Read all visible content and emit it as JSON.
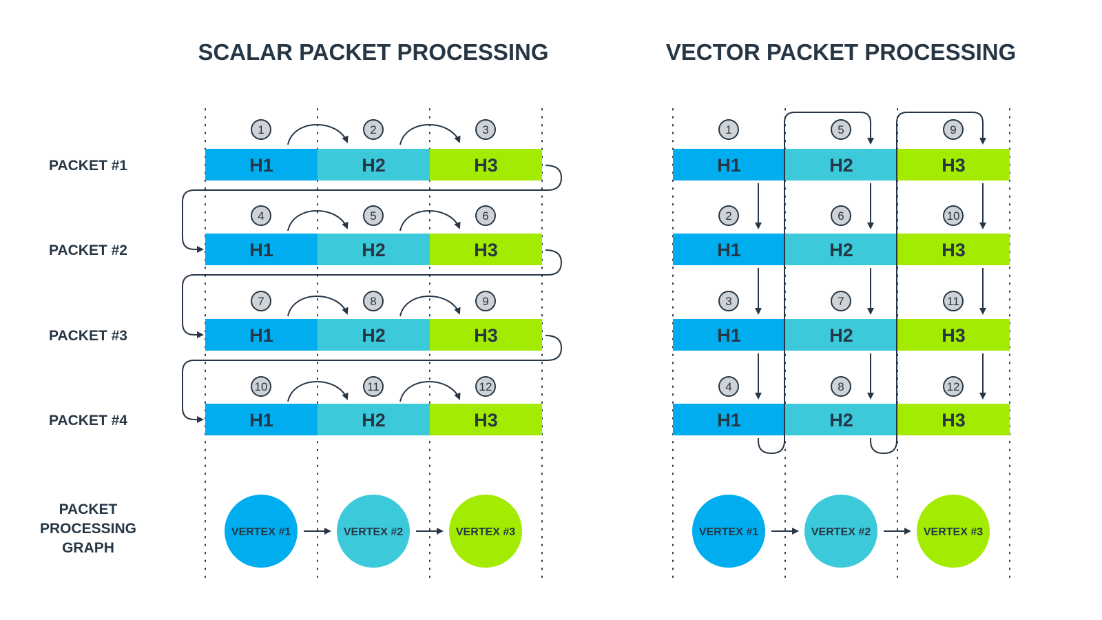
{
  "titles": {
    "scalar": "SCALAR PACKET PROCESSING",
    "vector": "VECTOR PACKET PROCESSING"
  },
  "row_labels": [
    "PACKET #1",
    "PACKET #2",
    "PACKET #3",
    "PACKET #4"
  ],
  "graph_label": [
    "PACKET",
    "PROCESSING",
    "GRAPH"
  ],
  "headers": [
    "H1",
    "H2",
    "H3"
  ],
  "vertices": [
    "VERTEX #1",
    "VERTEX #2",
    "VERTEX #3"
  ],
  "scalar_steps": [
    [
      "1",
      "2",
      "3"
    ],
    [
      "4",
      "5",
      "6"
    ],
    [
      "7",
      "8",
      "9"
    ],
    [
      "10",
      "11",
      "12"
    ]
  ],
  "vector_steps": [
    [
      "1",
      "5",
      "9"
    ],
    [
      "2",
      "6",
      "10"
    ],
    [
      "3",
      "7",
      "11"
    ],
    [
      "4",
      "8",
      "12"
    ]
  ],
  "colors": {
    "h1": "#00aeef",
    "h2": "#3ccadb",
    "h3": "#a3eb00",
    "ink": "#263645",
    "step_fill": "#d0d3d6"
  }
}
